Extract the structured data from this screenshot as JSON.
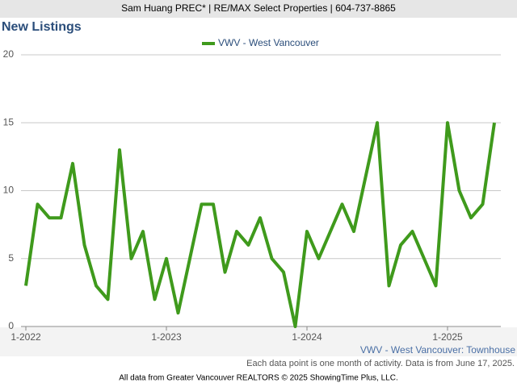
{
  "header": "Sam Huang PREC* | RE/MAX Select Properties | 604-737-8865",
  "chart_data": {
    "type": "line",
    "title": "New Listings",
    "categories": [
      "1-2022",
      null,
      null,
      null,
      null,
      null,
      null,
      null,
      null,
      null,
      null,
      null,
      "1-2023",
      null,
      null,
      null,
      null,
      null,
      null,
      null,
      null,
      null,
      null,
      null,
      "1-2024",
      null,
      null,
      null,
      null,
      null,
      null,
      null,
      null,
      null,
      null,
      null,
      "1-2025",
      null,
      null,
      null,
      null
    ],
    "series": [
      {
        "name": "VWV - West Vancouver",
        "color": "#3f9a1c",
        "values": [
          3,
          9,
          8,
          8,
          12,
          6,
          3,
          2,
          13,
          5,
          7,
          2,
          5,
          1,
          5,
          9,
          9,
          4,
          7,
          6,
          8,
          5,
          4,
          0,
          7,
          5,
          7,
          9,
          7,
          11,
          15,
          3,
          6,
          7,
          5,
          3,
          15,
          10,
          8,
          9,
          15
        ]
      }
    ],
    "ylim": [
      0,
      20
    ],
    "yticks": [
      0,
      5,
      10,
      15,
      20
    ],
    "grid": true,
    "subtitle": "VWV - West Vancouver: Townhouse",
    "note": "Each data point is one month of activity. Data is from June 17, 2025.",
    "source": "All data from Greater Vancouver REALTORS © 2025 ShowingTime Plus, LLC."
  }
}
